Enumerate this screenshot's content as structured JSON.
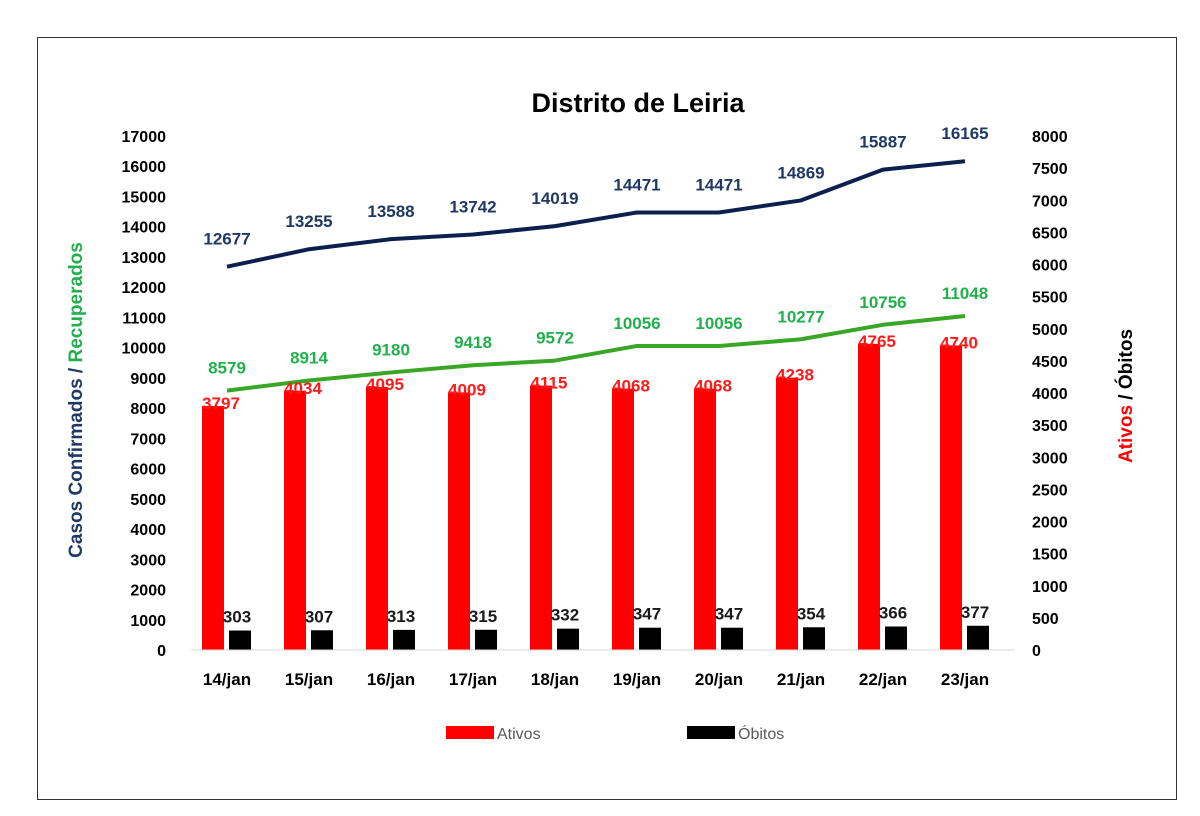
{
  "chart_data": {
    "type": "bar",
    "title": "Distrito de Leiria",
    "categories": [
      "14/jan",
      "15/jan",
      "16/jan",
      "17/jan",
      "18/jan",
      "19/jan",
      "20/jan",
      "21/jan",
      "22/jan",
      "23/jan"
    ],
    "left_axis": {
      "label_part1": "Casos Confirmados",
      "label_sep": " / ",
      "label_part2": "Recuperados",
      "ylim": [
        0,
        17000
      ],
      "ticks": [
        0,
        1000,
        2000,
        3000,
        4000,
        5000,
        6000,
        7000,
        8000,
        9000,
        10000,
        11000,
        12000,
        13000,
        14000,
        15000,
        16000,
        17000
      ]
    },
    "right_axis": {
      "label_part1": "Ativos",
      "label_sep": " / ",
      "label_part2": "Óbitos",
      "ylim": [
        0,
        8000
      ],
      "ticks": [
        0,
        500,
        1000,
        1500,
        2000,
        2500,
        3000,
        3500,
        4000,
        4500,
        5000,
        5500,
        6000,
        6500,
        7000,
        7500,
        8000
      ]
    },
    "series": [
      {
        "key": "confirmados",
        "kind": "line",
        "axis": "left",
        "color": "#0d1f4f",
        "label_color": "#1f3864",
        "values": [
          12677,
          13255,
          13588,
          13742,
          14019,
          14471,
          14471,
          14869,
          15887,
          16165
        ]
      },
      {
        "key": "recuperados",
        "kind": "line",
        "axis": "left",
        "color": "#3aa626",
        "label_color": "#21b04b",
        "values": [
          8579,
          8914,
          9180,
          9418,
          9572,
          10056,
          10056,
          10277,
          10756,
          11048
        ]
      },
      {
        "key": "ativos",
        "name": "Ativos",
        "kind": "bar",
        "axis": "right",
        "color": "#ff0000",
        "label_color": "#ff1a1a",
        "values": [
          3797,
          4034,
          4095,
          4009,
          4115,
          4068,
          4068,
          4238,
          4765,
          4740
        ]
      },
      {
        "key": "obitos",
        "name": "Óbitos",
        "kind": "bar",
        "axis": "right",
        "color": "#000000",
        "label_color": "#1a1a1a",
        "values": [
          303,
          307,
          313,
          315,
          332,
          347,
          347,
          354,
          366,
          377
        ]
      }
    ],
    "legend": {
      "position": "bottom",
      "entries": [
        "Ativos",
        "Óbitos"
      ]
    },
    "grid": false,
    "colors": {
      "left_label_1": "#1f3864",
      "left_label_2": "#21b04b",
      "right_label_1": "#ff0000",
      "right_label_2": "#000000",
      "tick": "#000000"
    }
  }
}
